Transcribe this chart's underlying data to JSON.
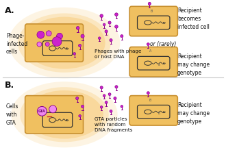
{
  "bg_color": "#ffffff",
  "cell_fill": "#f0c060",
  "cell_edge": "#c89030",
  "phage_color": "#cc22cc",
  "phage_dark": "#880088",
  "phage_light": "#ee66ee",
  "text_color": "#111111",
  "glow_color": "#f5aa20",
  "label_A": "A.",
  "label_B": "B.",
  "label_phage_infected": "Phage-\ninfected\ncells",
  "label_phages_with": "Phages with phage\nor host DNA",
  "label_recipient_becomes": "Recipient\nbecomes\ninfected cell",
  "label_or_rarely": "or (rarely)",
  "label_recipient_may1": "Recipient\nmay change\ngenotype",
  "label_cells_with_gta": "Cells\nwith\nGTA",
  "label_gta_particles": "GTA particles\nwith random\nDNA fragments",
  "label_recipient_may2": "Recipient\nmay change\ngenotype"
}
